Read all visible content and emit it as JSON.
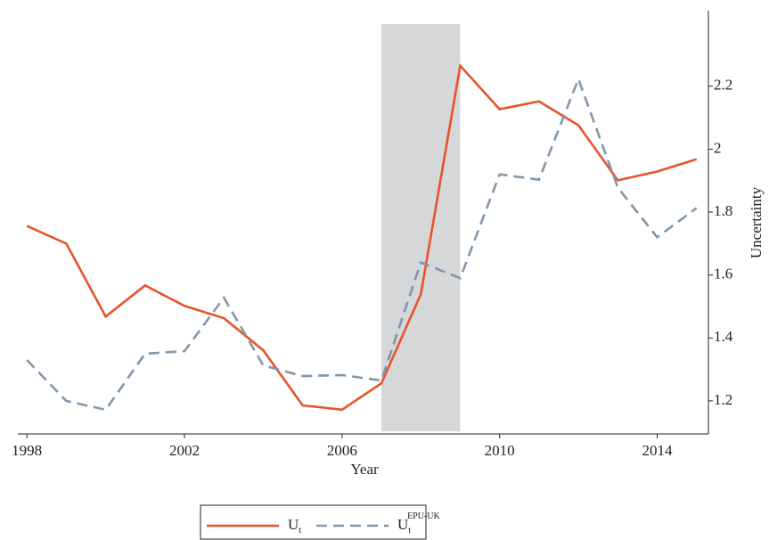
{
  "chart_data": {
    "type": "line",
    "xlabel": "Year",
    "ylabel": "Uncertainty",
    "x": [
      1998,
      1999,
      2000,
      2001,
      2002,
      2003,
      2004,
      2005,
      2006,
      2007,
      2008,
      2009,
      2010,
      2011,
      2012,
      2013,
      2014,
      2015
    ],
    "series": [
      {
        "name": "U",
        "name_sub": "t",
        "color": "#e8532b",
        "dash": false,
        "values": [
          1.756,
          1.7,
          1.468,
          1.567,
          1.502,
          1.463,
          1.361,
          1.186,
          1.172,
          1.256,
          1.539,
          2.265,
          2.127,
          2.152,
          2.076,
          1.901,
          1.929,
          1.968
        ]
      },
      {
        "name": "U",
        "name_sub": "t",
        "name_sup": "EPU-UK",
        "color": "#8097ab",
        "dash": true,
        "values": [
          1.33,
          1.2,
          1.172,
          1.35,
          1.358,
          1.528,
          1.313,
          1.279,
          1.282,
          1.265,
          1.64,
          1.59,
          1.92,
          1.903,
          2.223,
          1.878,
          1.72,
          1.813
        ]
      }
    ],
    "shaded": {
      "start": 2007,
      "end": 2009,
      "color": "#d6d7d9"
    },
    "xlim": [
      1997.77,
      2015.3
    ],
    "xticks": [
      1998,
      2002,
      2006,
      2010,
      2014
    ],
    "ylim": [
      1.095,
      2.44
    ],
    "yticks": [
      1.2,
      1.4,
      1.6,
      1.8,
      2,
      2.2
    ],
    "yaxis_side": "right",
    "grid": false
  }
}
